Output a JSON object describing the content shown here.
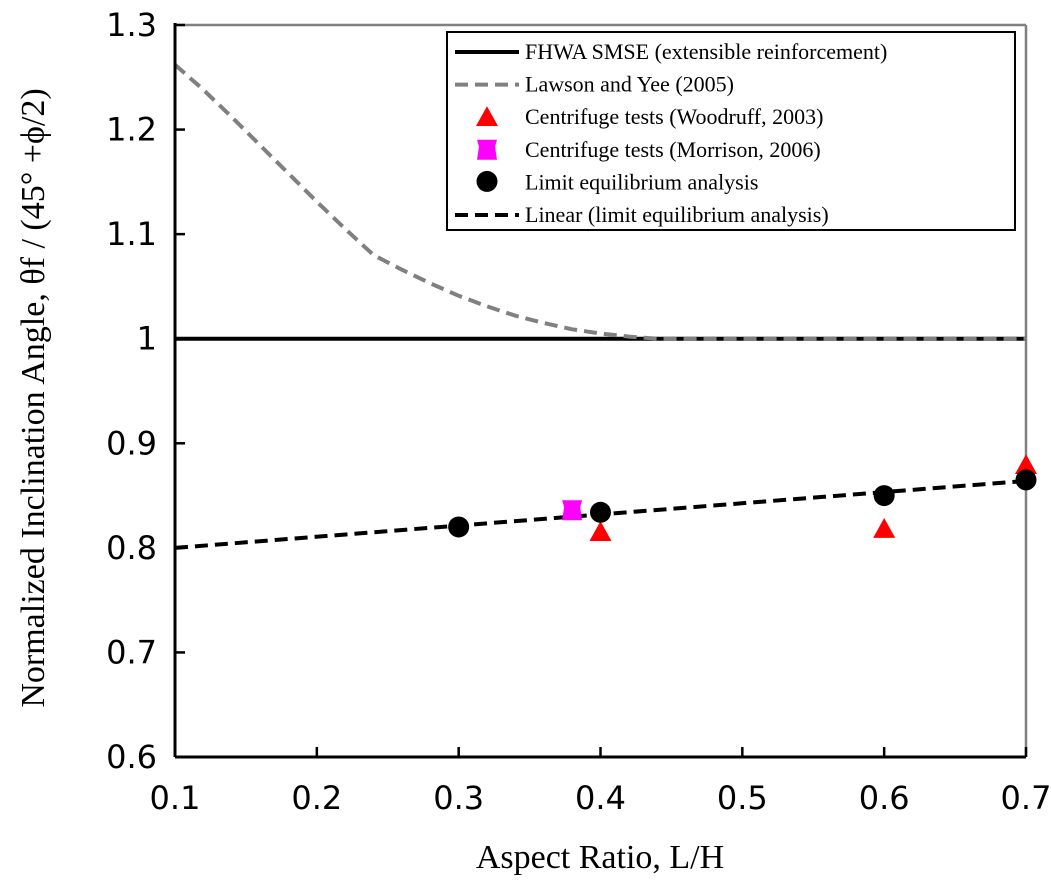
{
  "chart_data": {
    "type": "scatter",
    "xlabel": "Aspect Ratio, L/H",
    "ylabel": "Normalized Inclination Angle, θf / (45° +ϕ/2)",
    "xlim": [
      0.1,
      0.7
    ],
    "ylim": [
      0.6,
      1.3
    ],
    "x_ticks": [
      "0.1",
      "0.2",
      "0.3",
      "0.4",
      "0.5",
      "0.6",
      "0.7"
    ],
    "y_ticks": [
      "0.6",
      "0.7",
      "0.8",
      "0.9",
      "1",
      "1.1",
      "1.2",
      "1.3"
    ],
    "grid": false,
    "legend_position": "top-right",
    "series": [
      {
        "name": "FHWA SMSE (extensible reinforcement)",
        "kind": "line",
        "style": "solid",
        "color": "#000000",
        "x": [
          0.1,
          0.7
        ],
        "y": [
          1.0,
          1.0
        ]
      },
      {
        "name": "Lawson and Yee (2005)",
        "kind": "line",
        "style": "dashed",
        "color": "#808080",
        "x": [
          0.1,
          0.12,
          0.14,
          0.16,
          0.18,
          0.2,
          0.22,
          0.24,
          0.26,
          0.28,
          0.3,
          0.32,
          0.34,
          0.36,
          0.38,
          0.4,
          0.42,
          0.44,
          0.46,
          0.5,
          0.55,
          0.6,
          0.65,
          0.7
        ],
        "y": [
          1.262,
          1.238,
          1.212,
          1.185,
          1.158,
          1.131,
          1.105,
          1.08,
          1.066,
          1.053,
          1.041,
          1.031,
          1.022,
          1.015,
          1.009,
          1.005,
          1.002,
          1.0,
          1.0,
          1.0,
          1.0,
          1.0,
          1.0,
          1.0
        ]
      },
      {
        "name": "Centrifuge tests (Woodruff, 2003)",
        "kind": "marker",
        "marker": "triangle",
        "color": "#ff0000",
        "x": [
          0.4,
          0.6,
          0.7
        ],
        "y": [
          0.815,
          0.818,
          0.879
        ]
      },
      {
        "name": "Centrifuge tests (Morrison, 2006)",
        "kind": "marker",
        "marker": "hourglass-square",
        "color": "#ff00ff",
        "x": [
          0.38
        ],
        "y": [
          0.836
        ]
      },
      {
        "name": "Limit equilibrium analysis",
        "kind": "marker",
        "marker": "circle",
        "color": "#000000",
        "x": [
          0.3,
          0.4,
          0.6,
          0.7
        ],
        "y": [
          0.82,
          0.834,
          0.85,
          0.865
        ]
      },
      {
        "name": "Linear (limit equilibrium analysis)",
        "kind": "line",
        "style": "dashed",
        "color": "#000000",
        "x": [
          0.1,
          0.7
        ],
        "y": [
          0.8,
          0.864
        ]
      }
    ]
  }
}
